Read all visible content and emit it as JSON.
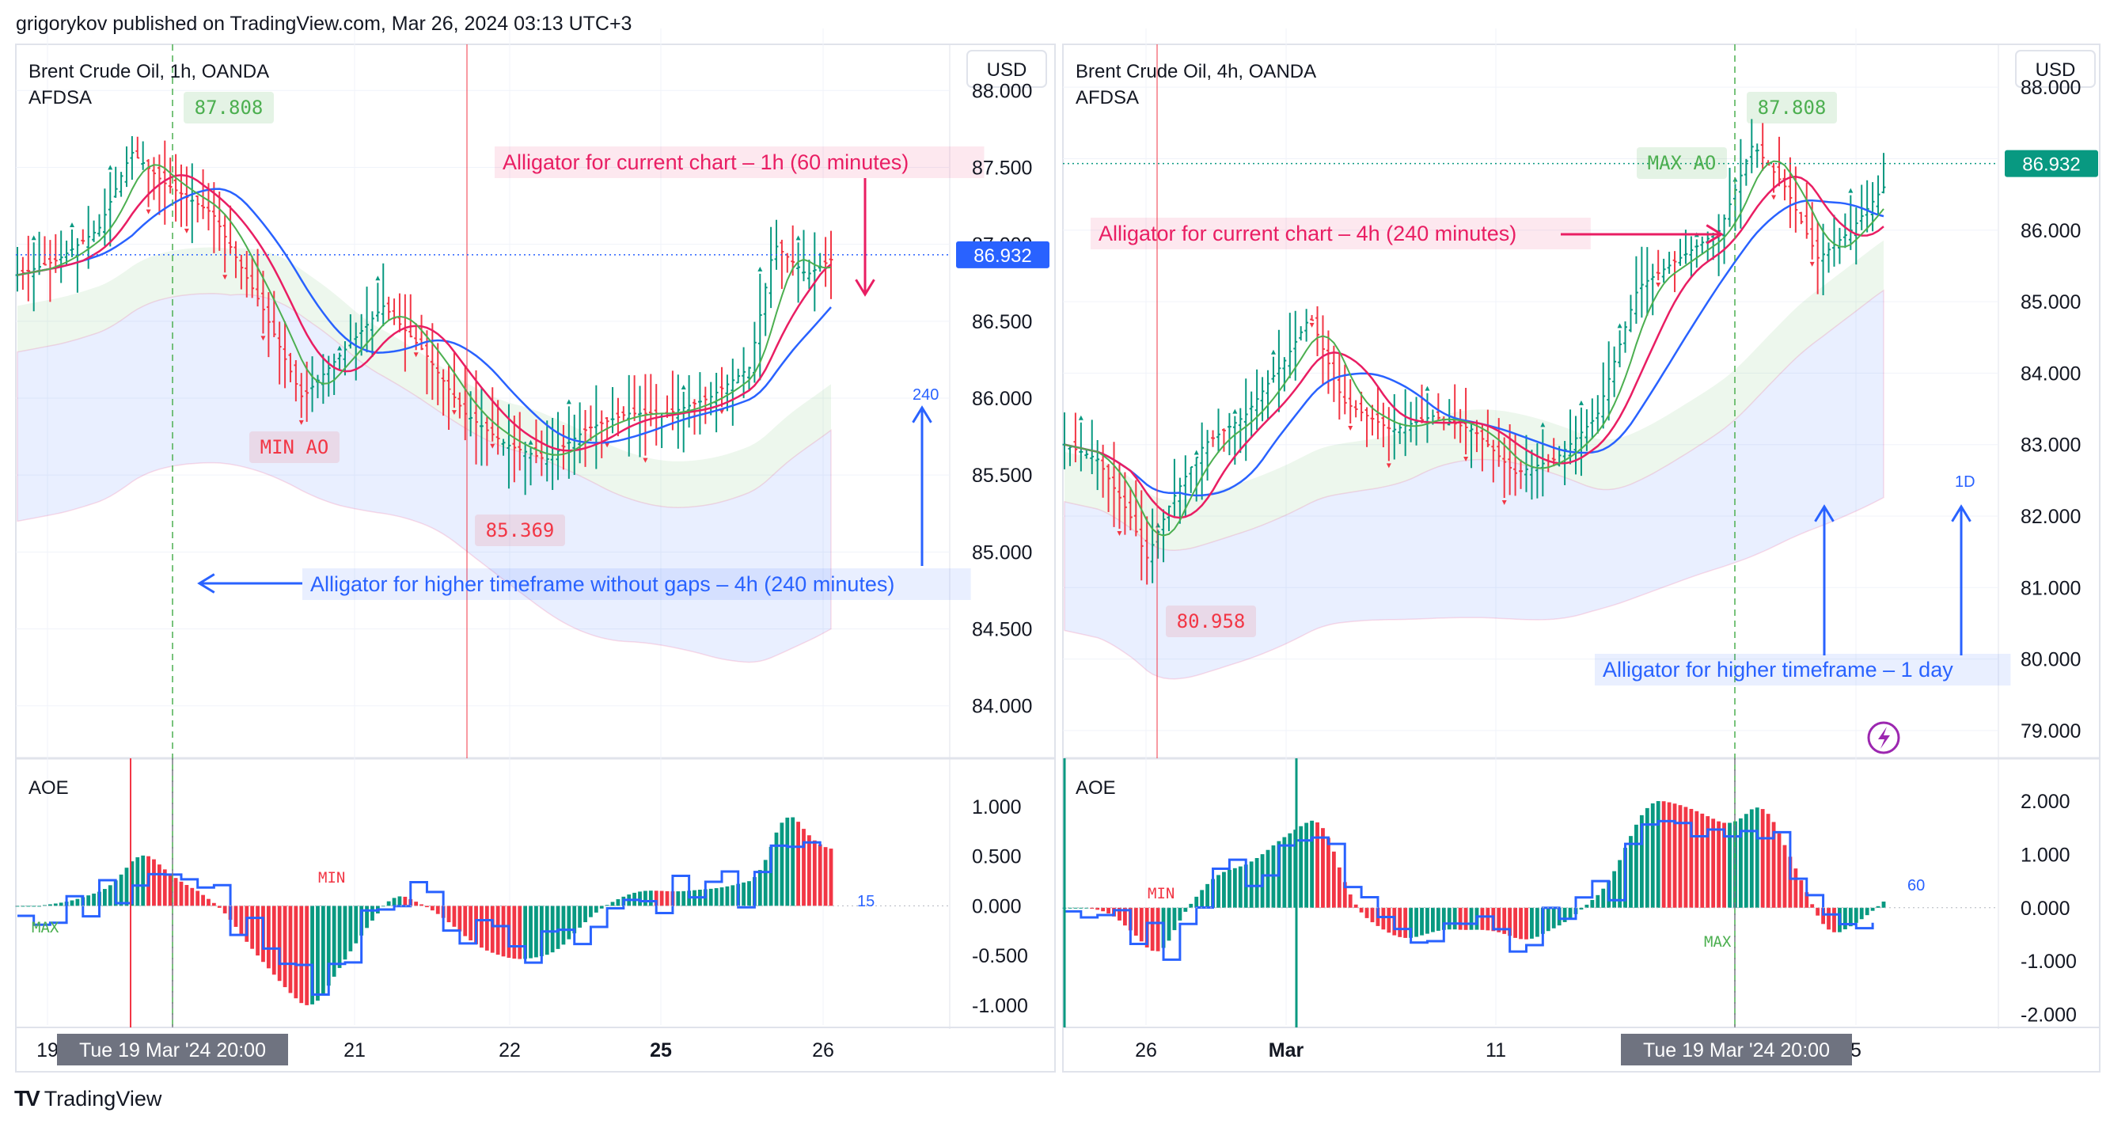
{
  "header": {
    "publisher_line": "grigorykov published on TradingView.com, Mar 26, 2024 03:13 UTC+3"
  },
  "footer": {
    "logo_mark": "TV",
    "brand": "TradingView"
  },
  "colors": {
    "up": "#089981",
    "down": "#f23645",
    "blue": "#2962ff",
    "pink": "#e91e63",
    "jaw": "#2962ff",
    "teeth": "#e91e63",
    "lips": "#4caf50",
    "grid": "#f0f3fa",
    "axis_text": "#131722",
    "label_bg_gray": "#6f7380"
  },
  "chart_data": [
    {
      "type": "candlestick",
      "panel": "left",
      "symbol_line": "Brent Crude Oil, 1h, OANDA",
      "indicator_name": "AFDSA",
      "currency_button": "USD",
      "price_axis": {
        "ylim": [
          83.7,
          88.3
        ],
        "ticks": [
          "88.000",
          "87.500",
          "87.000",
          "86.500",
          "86.000",
          "85.500",
          "85.000",
          "84.500",
          "84.000"
        ]
      },
      "last_price_label": "86.932",
      "last_price": 86.932,
      "x_tick_labels": [
        "19",
        "21",
        "22",
        "25",
        "26"
      ],
      "crosshair_time_label": "Tue 19 Mar '24   20:00",
      "high_label": "87.808",
      "low_label": "85.369",
      "ao_label": "MIN AO",
      "period_label": "240",
      "annotations": [
        {
          "text": "Alligator for current chart – 1h (60 minutes)",
          "color": "pink"
        },
        {
          "text": "Alligator for higher timeframe without gaps – 4h (240 minutes)",
          "color": "blue"
        }
      ],
      "oscillator": {
        "name": "AOE",
        "ylim": [
          -1.2,
          1.35
        ],
        "ticks": [
          "1.000",
          "0.500",
          "0.000",
          "-0.500",
          "-1.000"
        ],
        "min_label": "MIN",
        "max_label": "MAX",
        "period_label": "15"
      }
    },
    {
      "type": "candlestick",
      "panel": "right",
      "symbol_line": "Brent Crude Oil, 4h, OANDA",
      "indicator_name": "AFDSA",
      "currency_button": "USD",
      "price_axis": {
        "ylim": [
          78.7,
          88.6
        ],
        "ticks": [
          "88.000",
          "87.000",
          "86.000",
          "85.000",
          "84.000",
          "83.000",
          "82.000",
          "81.000",
          "80.000",
          "79.000"
        ]
      },
      "last_price_label": "86.932",
      "last_price": 86.932,
      "x_tick_labels": [
        "26",
        "Mar",
        "11",
        "5"
      ],
      "crosshair_time_label": "Tue 19 Mar '24   20:00",
      "high_label": "87.808",
      "low_label": "80.958",
      "ao_label": "MAX AO",
      "period_label": "1D",
      "annotations": [
        {
          "text": "Alligator for current chart – 4h (240 minutes)",
          "color": "pink"
        },
        {
          "text": "Alligator for higher timeframe – 1 day",
          "color": "blue"
        }
      ],
      "oscillator": {
        "name": "AOE",
        "ylim": [
          -2.2,
          2.55
        ],
        "ticks": [
          "2.000",
          "1.000",
          "0.000",
          "-1.000",
          "-2.000"
        ],
        "min_label": "MIN",
        "max_label": "MAX",
        "period_label": "60"
      }
    }
  ]
}
